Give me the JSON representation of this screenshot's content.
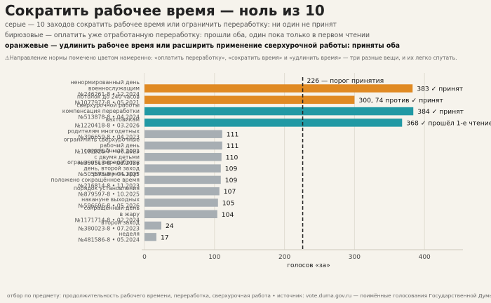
{
  "header": {
    "title": "Сократить рабочее время — ноль из 10",
    "subtitle_1": "серые — 10 заходов сократить рабочее время или ограничить переработку: ни один не принят",
    "subtitle_2": "бирюзовые — оплатить уже отработанную переработку: прошли оба, один пока только в первом чтении",
    "subtitle_3": "оранжевые — удлинить рабочее время или расширить применение сверхурочной работы: приняты оба",
    "note": "⚠Направление нормы помечено цветом намеренно: «оплатить переработку», «сократить время» и «удлинить время» — три разные вещи, и их легко спутать."
  },
  "footer": "отбор по предмету: продолжительность рабочего времени, переработка, сверхурочная работа • источник: vote.duma.gov.ru — поимённые голосования Государственной Думы",
  "colors": {
    "orange": "#e08a23",
    "teal": "#2199a4",
    "gray": "#a7aeb3",
    "threshold": "#222222"
  },
  "chart_data": {
    "type": "bar",
    "orientation": "horizontal",
    "xlabel": "голосов «за»",
    "xlim": [
      0,
      450
    ],
    "xticks": [
      0,
      100,
      200,
      300,
      400
    ],
    "grid": true,
    "threshold": {
      "value": 226,
      "label": "226 — порог принятия"
    },
    "bars": [
      {
        "label_lines": [
          "ненормированный день",
          "военнослужащим",
          "№246261-8 • 12.2024"
        ],
        "value": 383,
        "value_label": "383  ✓ принят",
        "color": "orange"
      },
      {
        "label_lines": [
          "потолок до 240 часов",
          "№1077977-8 • 05.2021"
        ],
        "value": 300,
        "value_label": "300, 74 против  ✓ принят",
        "color": "orange"
      },
      {
        "label_lines": [
          "сверхурочной работы",
          "компенсация переработки",
          "№513878-8 • 04.2024"
        ],
        "value": 384,
        "value_label": "384  ✓ принят",
        "color": "teal"
      },
      {
        "label_lines": [
          "вахтовикам",
          "№1220418-8 • 03.2026"
        ],
        "value": 368,
        "value_label": "368  ✓ прошёл 1-е чтение",
        "color": "teal"
      },
      {
        "label_lines": [
          "родителям многодетных",
          "№396659-8 • 04.2023"
        ],
        "value": 111,
        "value_label": "111",
        "color": "gray"
      },
      {
        "label_lines": [
          "ограничить сверхурочные",
          "рабочий день",
          "№1182825-7 • 06.2023"
        ],
        "value": 111,
        "value_label": "111",
        "color": "gray"
      },
      {
        "label_lines": [
          "сокращённый день",
          "с двумя детьми",
          "№399518-8 • 02.2026"
        ],
        "value": 110,
        "value_label": "110",
        "color": "gray"
      },
      {
        "label_lines": [
          "ограничить переработку",
          "день, второй заход",
          "№505576-8 • 04.2025"
        ],
        "value": 109,
        "value_label": "109",
        "color": "gray"
      },
      {
        "label_lines": [
          "расширить круг",
          "положено сокращённое время",
          "№216814-8 • 11.2023"
        ],
        "value": 109,
        "value_label": "109",
        "color": "gray"
      },
      {
        "label_lines": [
          "порядок установления",
          "№879597-8 • 10.2025"
        ],
        "value": 107,
        "value_label": "107",
        "color": "gray"
      },
      {
        "label_lines": [
          "накануне выходных",
          "№596696-8 • 05.2026"
        ],
        "value": 105,
        "value_label": "105",
        "color": "gray"
      },
      {
        "label_lines": [
          "сокращённый день",
          "в жару",
          "№1171714-8 • 02.2024"
        ],
        "value": 104,
        "value_label": "104",
        "color": "gray"
      },
      {
        "label_lines": [
          "второй заход",
          "№380023-8 • 07.2023"
        ],
        "value": 24,
        "value_label": "24",
        "color": "gray"
      },
      {
        "label_lines": [
          "неделя",
          "№481586-8 • 05.2024"
        ],
        "value": 17,
        "value_label": "17",
        "color": "gray"
      }
    ]
  }
}
